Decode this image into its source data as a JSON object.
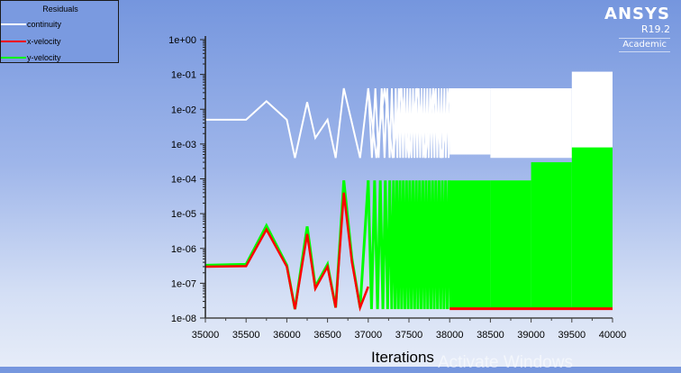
{
  "legend": {
    "title": "Residuals",
    "items": [
      {
        "label": "continuity",
        "color": "#ffffff"
      },
      {
        "label": "x-velocity",
        "color": "#ff0000"
      },
      {
        "label": "y-velocity",
        "color": "#00ff00"
      }
    ]
  },
  "logo": {
    "name": "ANSYS",
    "version": "R19.2",
    "edition": "Academic"
  },
  "watermark": "Activate Windows",
  "chart_data": {
    "type": "line",
    "title": "Residuals",
    "xlabel": "Iterations",
    "ylabel": "",
    "xlim": [
      35000,
      40000
    ],
    "ylim": [
      1e-08,
      1
    ],
    "yscale": "log",
    "grid": false,
    "legend_position": "top-left",
    "x_ticks": [
      "35000",
      "35500",
      "36000",
      "36500",
      "37000",
      "37500",
      "38000",
      "38500",
      "39000",
      "39500",
      "40000"
    ],
    "y_ticks": [
      "1e+00",
      "1e-01",
      "1e-02",
      "1e-03",
      "1e-04",
      "1e-05",
      "1e-06",
      "1e-07",
      "1e-08"
    ],
    "series": [
      {
        "name": "continuity",
        "color": "#ffffff",
        "x": [
          35000,
          35500,
          35750,
          36000,
          36100,
          36250,
          36350,
          36500,
          36600,
          36700,
          36800,
          36900,
          37000,
          37100,
          37150,
          37200,
          37300,
          37400,
          37500,
          37600,
          37700,
          37800,
          37900,
          38000
        ],
        "values": [
          0.005,
          0.005,
          0.017,
          0.005,
          0.0004,
          0.016,
          0.0015,
          0.005,
          0.0004,
          0.04,
          0.004,
          0.0004,
          0.04,
          0.0004,
          0.004,
          0.04,
          0.0004,
          0.04,
          0.0004,
          0.04,
          0.0004,
          0.04,
          0.0004,
          0.04
        ],
        "band_regions": [
          {
            "x_start": 38000,
            "x_end": 38500,
            "upper": 0.04,
            "lower": 0.0005
          },
          {
            "x_start": 38500,
            "x_end": 39500,
            "upper": 0.04,
            "lower": 0.0004
          },
          {
            "x_start": 39500,
            "x_end": 40000,
            "upper": 0.12,
            "lower": 0.0004
          }
        ]
      },
      {
        "name": "x-velocity",
        "color": "#ff0000",
        "x": [
          35000,
          35500,
          35750,
          36000,
          36100,
          36250,
          36350,
          36500,
          36600,
          36700,
          36800,
          36900,
          37000
        ],
        "values": [
          3e-07,
          3.1e-07,
          3.5e-06,
          3e-07,
          1.8e-08,
          2.6e-06,
          7e-08,
          3e-07,
          2e-08,
          4e-05,
          4e-07,
          2e-08,
          8e-08
        ],
        "band_regions": [
          {
            "x_start": 38000,
            "x_end": 40000,
            "upper": 1e-06,
            "lower": 1.8e-08
          }
        ]
      },
      {
        "name": "y-velocity",
        "color": "#00ff00",
        "x": [
          35000,
          35500,
          35750,
          36000,
          36100,
          36250,
          36350,
          36500,
          36600,
          36700,
          36800,
          36900,
          37000
        ],
        "values": [
          3.3e-07,
          3.5e-07,
          4.5e-06,
          3.3e-07,
          1.8e-08,
          4.3e-06,
          8e-08,
          3.5e-07,
          2e-08,
          9e-05,
          5e-07,
          2e-08,
          9e-05
        ],
        "band_regions": [
          {
            "x_start": 38000,
            "x_end": 38500,
            "upper": 9e-05,
            "lower": 2e-08
          },
          {
            "x_start": 38500,
            "x_end": 39000,
            "upper": 9e-05,
            "lower": 1.8e-08
          },
          {
            "x_start": 39000,
            "x_end": 39500,
            "upper": 0.0003,
            "lower": 1.8e-08
          },
          {
            "x_start": 39500,
            "x_end": 40000,
            "upper": 0.0008,
            "lower": 1.8e-08
          }
        ]
      }
    ]
  }
}
